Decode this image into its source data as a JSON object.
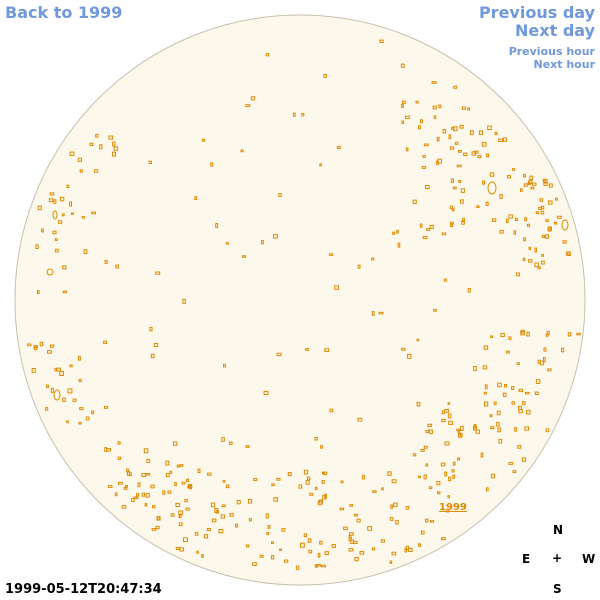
{
  "nav": {
    "back_label": "Back to 1999",
    "previous_day": "Previous day",
    "next_day": "Next day",
    "previous_hour": "Previous hour",
    "next_hour": "Next hour"
  },
  "compass": {
    "north": "N",
    "east": "E",
    "center": "+",
    "west": "W",
    "south": "S"
  },
  "timestamp": "1999-05-12T20:47:34",
  "region_label": "1999",
  "colors": {
    "disc_fill": "#fdf8ec",
    "disc_stroke": "#c9c0ad",
    "contour": "#e08a00",
    "link": "#6f98dd"
  }
}
